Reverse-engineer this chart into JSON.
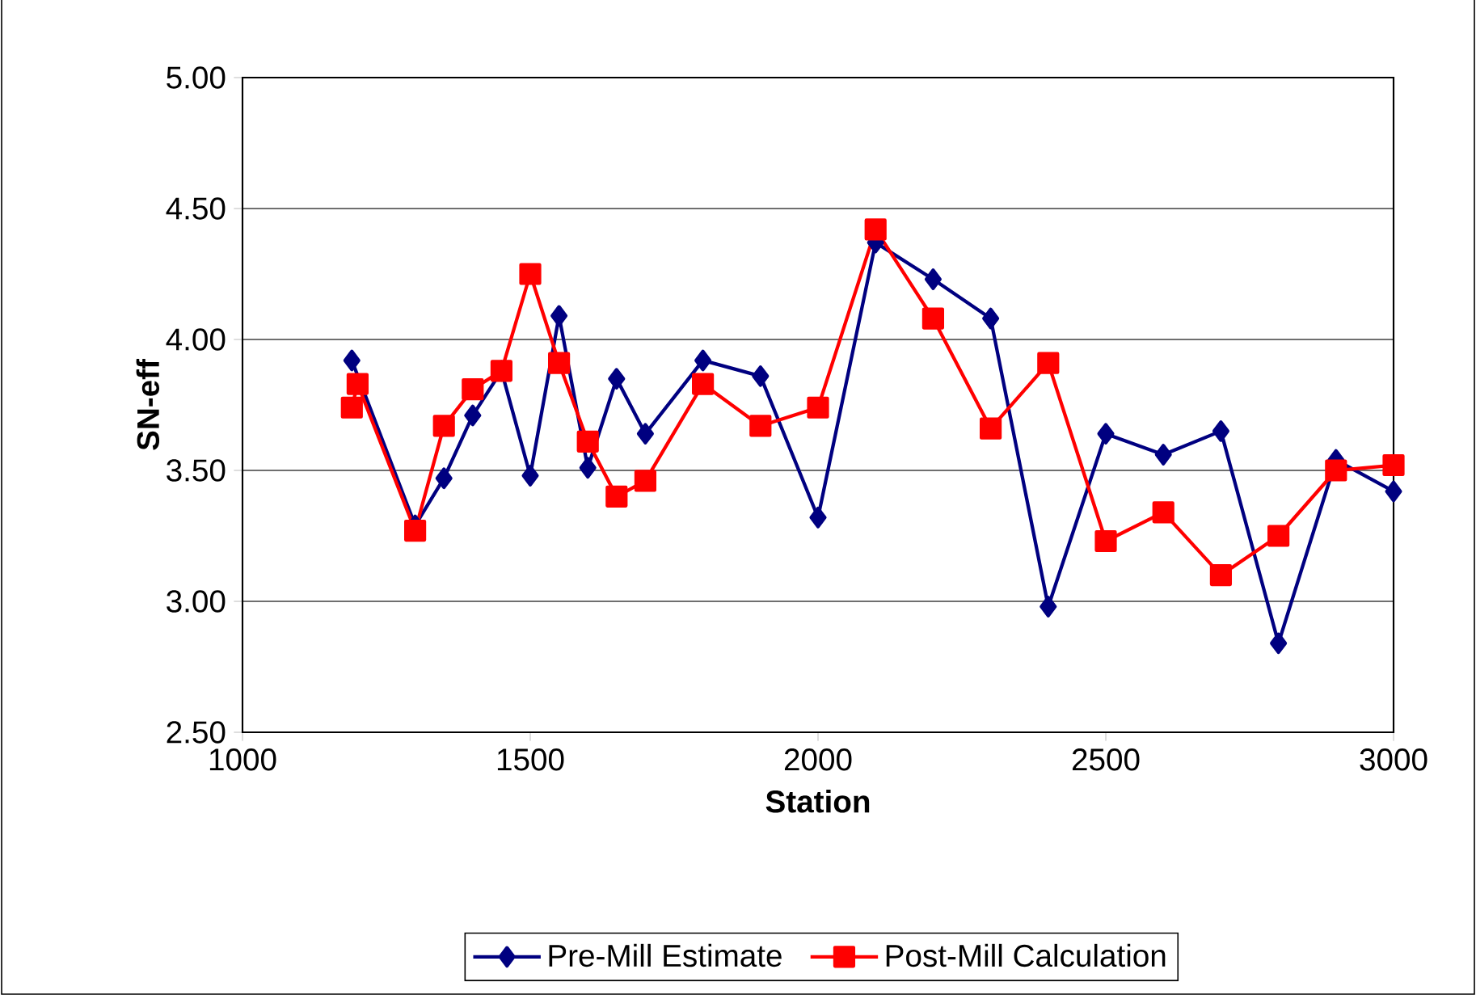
{
  "chart_data": {
    "type": "line",
    "xlabel": "Station",
    "ylabel": "SN-eff",
    "x": [
      1190,
      1200,
      1300,
      1350,
      1400,
      1450,
      1500,
      1550,
      1600,
      1650,
      1700,
      1800,
      1900,
      2000,
      2100,
      2200,
      2300,
      2400,
      2500,
      2600,
      2700,
      2800,
      2900,
      3000
    ],
    "series": [
      {
        "name": "Pre-Mill Estimate",
        "color": "#000080",
        "marker": "diamond",
        "values": [
          3.92,
          null,
          3.29,
          3.47,
          3.71,
          3.88,
          3.48,
          4.09,
          3.51,
          3.85,
          3.64,
          3.92,
          3.86,
          3.32,
          4.37,
          4.23,
          4.08,
          2.98,
          3.64,
          3.56,
          3.65,
          2.84,
          3.54,
          3.42
        ]
      },
      {
        "name": "Post-Mill Calculation",
        "color": "#ff0000",
        "marker": "square",
        "values": [
          3.74,
          3.83,
          3.27,
          3.67,
          3.81,
          3.88,
          4.25,
          3.91,
          3.61,
          3.4,
          3.46,
          3.83,
          3.67,
          3.74,
          4.42,
          4.08,
          3.66,
          3.91,
          3.23,
          3.34,
          3.1,
          3.25,
          3.5,
          3.52
        ]
      }
    ],
    "xlim": [
      1000,
      3000
    ],
    "xticks": [
      1000,
      1500,
      2000,
      2500,
      3000
    ],
    "ylim": [
      2.5,
      5
    ],
    "yticks": [
      {
        "value": 2.5,
        "label": "2.50"
      },
      {
        "value": 3,
        "label": "3.00"
      },
      {
        "value": 3.5,
        "label": "3.50"
      },
      {
        "value": 4,
        "label": "4.00"
      },
      {
        "value": 4.5,
        "label": "4.50"
      },
      {
        "value": 5,
        "label": "5.00"
      }
    ],
    "grid": "y",
    "legend": "bottom",
    "line_style": "solid"
  }
}
